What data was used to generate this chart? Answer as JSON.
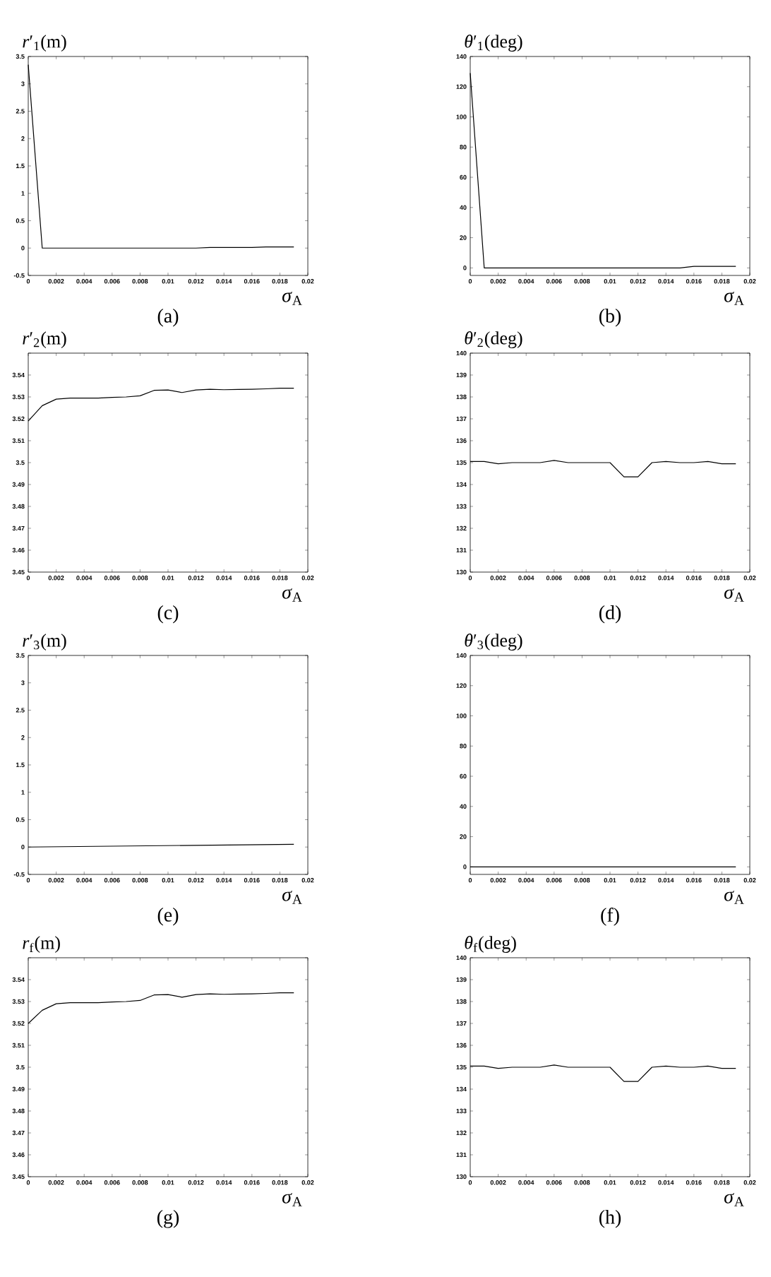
{
  "chart_data": [
    {
      "type": "line",
      "ylabel": "*r*′$_{1}$(m)",
      "xlabel": "*σ*$_{A}$",
      "annotations": [
        "(a)"
      ],
      "color": "#000000",
      "x": [
        0,
        0.001,
        0.002,
        0.003,
        0.004,
        0.005,
        0.006,
        0.007,
        0.008,
        0.009,
        0.01,
        0.011,
        0.012,
        0.013,
        0.014,
        0.015,
        0.016,
        0.017,
        0.018,
        0.019
      ],
      "values": [
        3.35,
        0,
        0,
        0,
        0,
        0,
        0,
        0,
        0,
        0,
        0,
        0,
        0,
        0.01,
        0.01,
        0.01,
        0.01,
        0.02,
        0.02,
        0.02
      ],
      "xlim": [
        0,
        0.02
      ],
      "xticks": [
        0,
        0.002,
        0.004,
        0.006,
        0.008,
        0.01,
        0.012,
        0.014,
        0.016,
        0.018,
        0.02
      ],
      "ylim": [
        -0.5,
        3.5
      ],
      "yticks": [
        -0.5,
        0,
        0.5,
        1,
        1.5,
        2,
        2.5,
        3,
        3.5
      ]
    },
    {
      "type": "line",
      "ylabel": "*θ*′$_{1}$(deg)",
      "xlabel": "*σ*$_{A}$",
      "annotations": [
        "(b)"
      ],
      "color": "#000000",
      "x": [
        0,
        0.001,
        0.002,
        0.003,
        0.004,
        0.005,
        0.006,
        0.007,
        0.008,
        0.009,
        0.01,
        0.011,
        0.012,
        0.013,
        0.014,
        0.015,
        0.016,
        0.017,
        0.018,
        0.019
      ],
      "values": [
        129,
        0,
        0,
        0,
        0,
        0,
        0,
        0,
        0,
        0,
        0,
        0,
        0,
        0,
        0,
        0,
        1,
        1,
        1,
        1
      ],
      "xlim": [
        0,
        0.02
      ],
      "xticks": [
        0,
        0.002,
        0.004,
        0.006,
        0.008,
        0.01,
        0.012,
        0.014,
        0.016,
        0.018,
        0.02
      ],
      "ylim": [
        -5,
        140
      ],
      "yticks": [
        0,
        20,
        40,
        60,
        80,
        100,
        120,
        140
      ]
    },
    {
      "type": "line",
      "ylabel": "*r*′$_{2}$(m)",
      "xlabel": "*σ*$_{A}$",
      "annotations": [
        "(c)"
      ],
      "color": "#000000",
      "x": [
        0,
        0.001,
        0.002,
        0.003,
        0.004,
        0.005,
        0.006,
        0.007,
        0.008,
        0.009,
        0.01,
        0.011,
        0.012,
        0.013,
        0.014,
        0.015,
        0.016,
        0.017,
        0.018,
        0.019
      ],
      "values": [
        3.519,
        3.526,
        3.529,
        3.5295,
        3.5295,
        3.5295,
        3.5298,
        3.53,
        3.5305,
        3.533,
        3.5332,
        3.532,
        3.5332,
        3.5335,
        3.5333,
        3.5334,
        3.5335,
        3.5337,
        3.534,
        3.534
      ],
      "xlim": [
        0,
        0.02
      ],
      "xticks": [
        0,
        0.002,
        0.004,
        0.006,
        0.008,
        0.01,
        0.012,
        0.014,
        0.016,
        0.018,
        0.02
      ],
      "ylim": [
        3.45,
        3.55
      ],
      "yticks": [
        3.45,
        3.46,
        3.47,
        3.48,
        3.49,
        3.5,
        3.51,
        3.52,
        3.53,
        3.54,
        {
          "value": 3.55,
          "label": null
        }
      ]
    },
    {
      "type": "line",
      "ylabel": "*θ*′$_{2}$(deg)",
      "xlabel": "*σ*$_{A}$",
      "annotations": [
        "(d)"
      ],
      "color": "#000000",
      "x": [
        0,
        0.001,
        0.002,
        0.003,
        0.004,
        0.005,
        0.006,
        0.007,
        0.008,
        0.009,
        0.01,
        0.011,
        0.012,
        0.013,
        0.014,
        0.015,
        0.016,
        0.017,
        0.018,
        0.019
      ],
      "values": [
        135.05,
        135.05,
        134.95,
        135,
        135,
        135,
        135.1,
        135,
        135,
        135,
        135,
        134.35,
        134.35,
        135,
        135.05,
        135,
        135,
        135.05,
        134.95,
        134.95
      ],
      "xlim": [
        0,
        0.02
      ],
      "xticks": [
        0,
        0.002,
        0.004,
        0.006,
        0.008,
        0.01,
        0.012,
        0.014,
        0.016,
        0.018,
        0.02
      ],
      "ylim": [
        130,
        140
      ],
      "yticks": [
        130,
        131,
        132,
        133,
        134,
        135,
        136,
        137,
        138,
        139,
        140
      ]
    },
    {
      "type": "line",
      "ylabel": "*r*′$_{3}$(m)",
      "xlabel": "*σ*$_{A}$",
      "annotations": [
        "(e)"
      ],
      "color": "#000000",
      "x": [
        0,
        0.019
      ],
      "values": [
        0,
        0.05
      ],
      "xlim": [
        0,
        0.02
      ],
      "xticks": [
        0,
        0.002,
        0.004,
        0.006,
        0.008,
        0.01,
        0.012,
        0.014,
        0.016,
        0.018,
        0.02
      ],
      "ylim": [
        -0.5,
        3.5
      ],
      "yticks": [
        -0.5,
        0,
        0.5,
        1,
        1.5,
        2,
        2.5,
        3,
        3.5
      ]
    },
    {
      "type": "line",
      "ylabel": "*θ*′$_{3}$(deg)",
      "xlabel": "*σ*$_{A}$",
      "annotations": [
        "(f)"
      ],
      "color": "#000000",
      "x": [
        0,
        0.019
      ],
      "values": [
        0,
        0
      ],
      "xlim": [
        0,
        0.02
      ],
      "xticks": [
        0,
        0.002,
        0.004,
        0.006,
        0.008,
        0.01,
        0.012,
        0.014,
        0.016,
        0.018,
        0.02
      ],
      "ylim": [
        -5,
        140
      ],
      "yticks": [
        0,
        20,
        40,
        60,
        80,
        100,
        120,
        140
      ]
    },
    {
      "type": "line",
      "ylabel": "*r*$_{f}$(m)",
      "xlabel": "*σ*$_{A}$",
      "annotations": [
        "(g)"
      ],
      "color": "#000000",
      "x": [
        0,
        0.001,
        0.002,
        0.003,
        0.004,
        0.005,
        0.006,
        0.007,
        0.008,
        0.009,
        0.01,
        0.011,
        0.012,
        0.013,
        0.014,
        0.015,
        0.016,
        0.017,
        0.018,
        0.019
      ],
      "values": [
        3.52,
        3.526,
        3.529,
        3.5295,
        3.5295,
        3.5295,
        3.5298,
        3.53,
        3.5305,
        3.533,
        3.5332,
        3.532,
        3.5332,
        3.5335,
        3.5333,
        3.5334,
        3.5335,
        3.5337,
        3.534,
        3.534
      ],
      "xlim": [
        0,
        0.02
      ],
      "xticks": [
        0,
        0.002,
        0.004,
        0.006,
        0.008,
        0.01,
        0.012,
        0.014,
        0.016,
        0.018,
        0.02
      ],
      "ylim": [
        3.45,
        3.55
      ],
      "yticks": [
        3.45,
        3.46,
        3.47,
        3.48,
        3.49,
        3.5,
        3.51,
        3.52,
        3.53,
        3.54,
        {
          "value": 3.55,
          "label": null
        }
      ]
    },
    {
      "type": "line",
      "ylabel": "*θ*$_{f}$(deg)",
      "xlabel": "*σ*$_{A}$",
      "annotations": [
        "(h)"
      ],
      "color": "#000000",
      "x": [
        0,
        0.001,
        0.002,
        0.003,
        0.004,
        0.005,
        0.006,
        0.007,
        0.008,
        0.009,
        0.01,
        0.011,
        0.012,
        0.013,
        0.014,
        0.015,
        0.016,
        0.017,
        0.018,
        0.019
      ],
      "values": [
        135.05,
        135.05,
        134.95,
        135,
        135,
        135,
        135.1,
        135,
        135,
        135,
        135,
        134.35,
        134.35,
        135,
        135.05,
        135,
        135,
        135.05,
        134.95,
        134.95
      ],
      "xlim": [
        0,
        0.02
      ],
      "xticks": [
        0,
        0.002,
        0.004,
        0.006,
        0.008,
        0.01,
        0.012,
        0.014,
        0.016,
        0.018,
        0.02
      ],
      "ylim": [
        130,
        140
      ],
      "yticks": [
        130,
        131,
        132,
        133,
        134,
        135,
        136,
        137,
        138,
        139,
        140
      ]
    }
  ]
}
